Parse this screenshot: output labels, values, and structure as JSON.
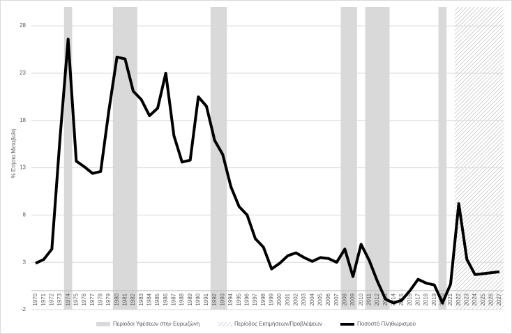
{
  "chart_data": {
    "type": "line",
    "y_label": "% Ετήσια Μεταβολή",
    "categories": [
      "1970",
      "1971",
      "1972",
      "1973",
      "1974",
      "1975",
      "1976",
      "1977",
      "1978",
      "1979",
      "1980",
      "1981",
      "1982",
      "1983",
      "1984",
      "1985",
      "1986",
      "1987",
      "1988",
      "1989",
      "1990",
      "1991",
      "1992",
      "1993",
      "1994",
      "1995",
      "1996",
      "1997",
      "1998",
      "1999",
      "2000",
      "2001",
      "2002",
      "2003",
      "2004",
      "2005",
      "2006",
      "2007",
      "2008",
      "2009",
      "2010",
      "2011",
      "2012",
      "2013",
      "2014",
      "2015",
      "2016",
      "2017",
      "2018",
      "2019",
      "2020",
      "2021",
      "2022",
      "2023",
      "2024",
      "2025",
      "2026",
      "2027"
    ],
    "series": [
      {
        "name": "Ποσοστό Πληθωρισμού",
        "color": "#000000",
        "values": [
          2.9,
          3.3,
          4.4,
          16.1,
          26.6,
          13.7,
          13.1,
          12.4,
          12.6,
          19.0,
          24.7,
          24.5,
          21.1,
          20.2,
          18.5,
          19.3,
          23.0,
          16.4,
          13.6,
          13.8,
          20.5,
          19.5,
          15.9,
          14.4,
          11.0,
          8.9,
          8.0,
          5.5,
          4.6,
          2.3,
          2.9,
          3.7,
          4.0,
          3.5,
          3.1,
          3.5,
          3.4,
          3.0,
          4.4,
          1.5,
          4.9,
          3.2,
          1.0,
          -0.9,
          -1.3,
          -1.0,
          0.0,
          1.2,
          0.8,
          0.6,
          -1.3,
          0.7,
          9.2,
          3.3,
          1.7,
          1.8,
          1.9,
          2.0
        ]
      }
    ],
    "shaded_periods": {
      "name": "Περίοδοι Υφέσεων στην Ευρωζώνη",
      "color": "#d9d9d9",
      "spans": [
        {
          "start": 1973.5,
          "end": 1974.5
        },
        {
          "start": 1979.5,
          "end": 1982.5
        },
        {
          "start": 1991.5,
          "end": 1993.5
        },
        {
          "start": 2007.5,
          "end": 2009.5
        },
        {
          "start": 2010.5,
          "end": 2013.5
        },
        {
          "start": 2019.5,
          "end": 2020.5
        }
      ]
    },
    "forecast_period": {
      "name": "Περίοδος Εκτιμήσεων/Προβλέψεων",
      "color": "#a6a6a6",
      "start": 2021.5,
      "end": 2027.5
    },
    "ylim": [
      -2,
      30
    ],
    "yticks": [
      -2,
      3,
      8,
      13,
      18,
      23,
      28
    ],
    "grid": true
  }
}
